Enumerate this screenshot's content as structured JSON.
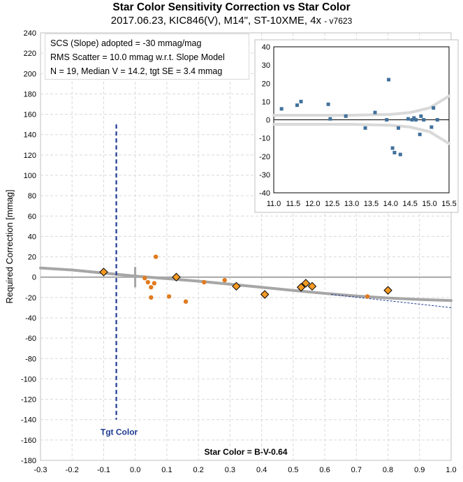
{
  "title": "Star Color Sensitivity Correction vs Star Color",
  "subtitle": "2017.06.23, KIC846(V), M14\", ST-10XME, 4x",
  "version": "- v7623",
  "stats": {
    "line1": "SCS (Slope) adopted  =  -30 mmag/mag",
    "line2": "RMS Scatter = 10.0 mmag w.r.t. Slope Model",
    "line3": "N = 19,  Median V = 14.2, tgt SE = 3.4 mmag"
  },
  "colors": {
    "trend": "#a6a6a6",
    "target_line": "#1f3a93",
    "orange": "#e07b20",
    "diamond_fill": "#f59a23",
    "inset_marker": "#41719c",
    "inset_band": "#d9d9d9",
    "grid": "#d9d9d9"
  },
  "chart_data": [
    {
      "type": "scatter",
      "xlabel": "Star Color = B-V-0.64",
      "ylabel": "Required Correction [mmag]",
      "xlim": [
        -0.3,
        1.0
      ],
      "ylim": [
        -180,
        240
      ],
      "x_ticks": [
        -0.3,
        -0.2,
        -0.1,
        0.0,
        0.1,
        0.2,
        0.3,
        0.4,
        0.5,
        0.6,
        0.7,
        0.8,
        0.9,
        1.0
      ],
      "x_tick_labels": [
        "-0.3",
        "-0.2",
        "-0.1",
        "0.0",
        "0.1",
        "0.2",
        "0.3",
        "0.4",
        "0.5",
        "0.6",
        "0.7",
        "0.8",
        "0.9",
        "1.0"
      ],
      "y_ticks": [
        -180,
        -160,
        -140,
        -120,
        -100,
        -80,
        -60,
        -40,
        -20,
        0,
        20,
        40,
        60,
        80,
        100,
        120,
        140,
        160,
        180,
        200,
        220,
        240
      ],
      "y_tick_labels": [
        "-180",
        "-160",
        "-140",
        "-120",
        "-100",
        "-80",
        "-60",
        "-40",
        "-20",
        "0",
        "20",
        "40",
        "60",
        "80",
        "100",
        "120",
        "140",
        "160",
        "180",
        "200",
        "220",
        "240"
      ],
      "grid": true,
      "target_color": {
        "label": "Tgt Color",
        "x": -0.06,
        "y_range": [
          -140,
          150
        ]
      },
      "series": [
        {
          "marker": "circle",
          "x": [
            0.03,
            0.04,
            0.05,
            0.06,
            0.065,
            0.05,
            0.107,
            0.16,
            0.218,
            0.283,
            0.735
          ],
          "y": [
            -1,
            -5,
            -10,
            -6,
            20,
            -20,
            -19,
            -24,
            -5,
            -3,
            -19
          ]
        },
        {
          "marker": "diamond",
          "x": [
            -0.1,
            0.13,
            0.32,
            0.41,
            0.525,
            0.54,
            0.56,
            0.8
          ],
          "y": [
            5,
            0,
            -9,
            -17,
            -10,
            -6,
            -9,
            -13
          ]
        }
      ],
      "trend_curve": {
        "x": [
          -0.3,
          -0.2,
          -0.1,
          0.0,
          0.1,
          0.2,
          0.3,
          0.4,
          0.5,
          0.6,
          0.7,
          0.8,
          0.9,
          1.0
        ],
        "y": [
          9,
          7,
          4,
          1,
          -1.5,
          -4,
          -7,
          -10,
          -13,
          -16,
          -18.5,
          -20.5,
          -22,
          -23
        ]
      },
      "slope_line": {
        "x": [
          0.62,
          1.0
        ],
        "y": [
          -17,
          -30
        ]
      }
    },
    {
      "type": "scatter",
      "xlim": [
        11.0,
        15.5
      ],
      "ylim": [
        -40,
        40
      ],
      "x_ticks": [
        11.0,
        11.5,
        12.0,
        12.5,
        13.0,
        13.5,
        14.0,
        14.5,
        15.0,
        15.5
      ],
      "x_tick_labels": [
        "11.0",
        "11.5",
        "12.0",
        "12.5",
        "13.0",
        "13.5",
        "14.0",
        "14.5",
        "15.0",
        "15.5"
      ],
      "y_ticks": [
        -40,
        -30,
        -20,
        -10,
        0,
        10,
        20,
        30,
        40
      ],
      "y_tick_labels": [
        "-40",
        "-30",
        "-20",
        "-10",
        "0",
        "10",
        "20",
        "30",
        "40"
      ],
      "grid": false,
      "series": [
        {
          "marker": "square",
          "x": [
            11.2,
            11.6,
            11.7,
            12.4,
            12.45,
            12.85,
            13.35,
            13.6,
            13.9,
            13.95,
            14.05,
            14.1,
            14.2,
            14.25,
            14.45,
            14.55,
            14.6,
            14.65,
            14.75,
            14.78,
            14.85,
            15.05,
            15.1,
            15.2
          ],
          "y": [
            6,
            8,
            10,
            8.5,
            0.5,
            2,
            -4.5,
            4,
            0,
            22,
            -15.5,
            -18,
            -4.5,
            -19,
            0.5,
            0,
            1,
            0,
            -8,
            2,
            0,
            -4,
            6.5,
            0
          ]
        }
      ],
      "upper_band": {
        "x": [
          11.0,
          12.0,
          13.0,
          14.0,
          14.5,
          15.0,
          15.5
        ],
        "y": [
          2.5,
          2.5,
          2.5,
          3,
          4,
          6.5,
          13
        ]
      },
      "lower_band": {
        "x": [
          11.0,
          12.0,
          13.0,
          14.0,
          14.5,
          15.0,
          15.5
        ],
        "y": [
          -2.5,
          -2.5,
          -2.5,
          -3,
          -4,
          -6.5,
          -13
        ]
      }
    }
  ]
}
